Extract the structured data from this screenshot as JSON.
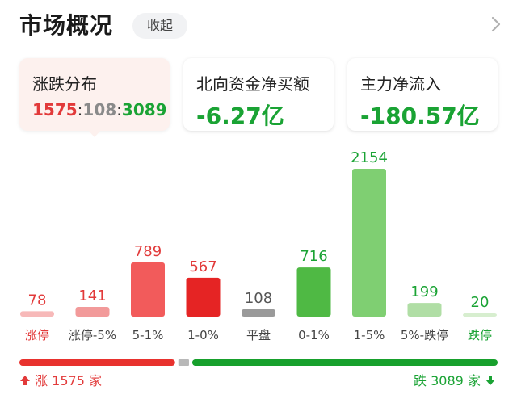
{
  "header": {
    "title": "市场概况",
    "collapse_label": "收起"
  },
  "cards": [
    {
      "label": "涨跌分布",
      "up": "1575",
      "flat": "108",
      "down": "3089",
      "sep": ":"
    },
    {
      "label": "北向资金净买额",
      "value": "-6.27亿"
    },
    {
      "label": "主力净流入",
      "value": "-180.57亿"
    }
  ],
  "chart_data": {
    "type": "bar",
    "categories": [
      "涨停",
      "涨停-5%",
      "5-1%",
      "1-0%",
      "平盘",
      "0-1%",
      "1-5%",
      "5%-跌停",
      "跌停"
    ],
    "values": [
      78,
      141,
      789,
      567,
      108,
      716,
      2154,
      199,
      20
    ],
    "colors": [
      "#f7b9b9",
      "#f29a9a",
      "#f25b5b",
      "#e52424",
      "#9a9a9a",
      "#4fb944",
      "#7fcf72",
      "#b0dea5",
      "#d7eecf"
    ],
    "label_colors": [
      "#e23a3a",
      "#e23a3a",
      "#e23a3a",
      "#e23a3a",
      "#555555",
      "#1aa334",
      "#1aa334",
      "#1aa334",
      "#1aa334"
    ],
    "category_label_colors": [
      "#e23a3a",
      "#444444",
      "#444444",
      "#444444",
      "#444444",
      "#444444",
      "#444444",
      "#444444",
      "#1aa334"
    ]
  },
  "footer": {
    "up_label": "涨 1575 家",
    "down_label": "跌 3089 家",
    "up_color": "#e8322e",
    "flat_color": "#b8b8b8",
    "down_color": "#17a02c",
    "up_count": 1575,
    "flat_count": 108,
    "down_count": 3089
  }
}
